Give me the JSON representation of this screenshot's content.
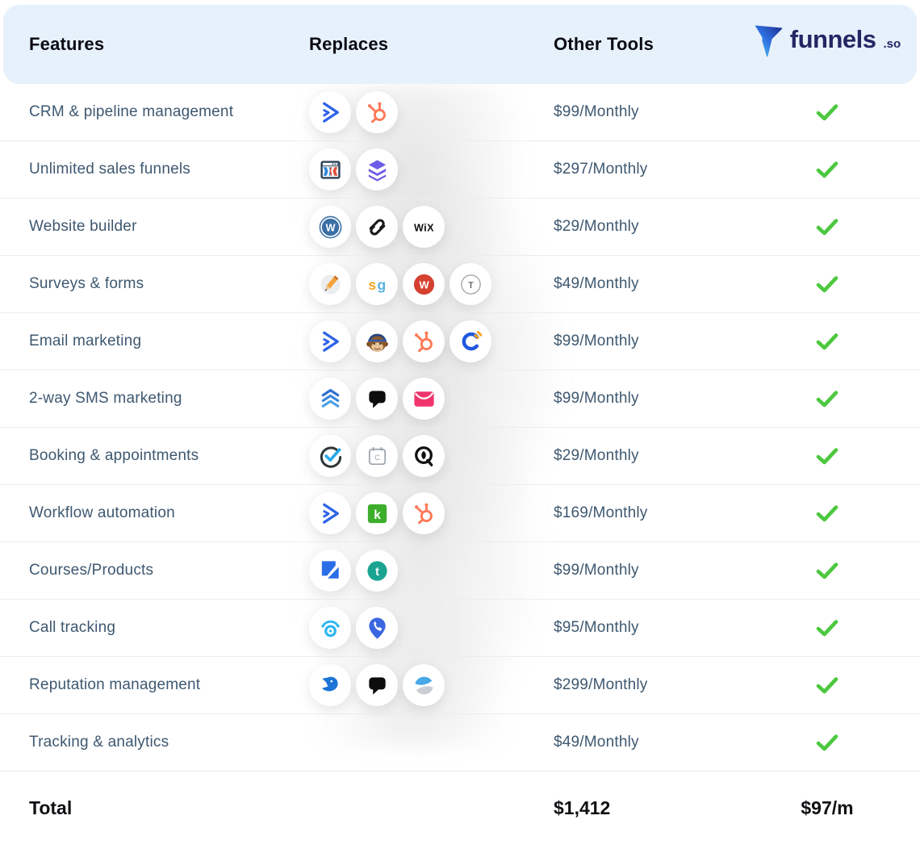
{
  "header": {
    "features_label": "Features",
    "replaces_label": "Replaces",
    "other_tools_label": "Other Tools",
    "brand": {
      "name": "funnels",
      "tld": ".so"
    }
  },
  "colors": {
    "header_bg": "#E7F1FC",
    "brand_navy": "#232663",
    "brand_gradient_start": "#1B2A8A",
    "brand_gradient_end": "#54D0F0",
    "feature_text": "#3E5870",
    "check_green": "#4CC83E",
    "divider": "#EDEDEE"
  },
  "rows": [
    {
      "feature": "CRM & pipeline management",
      "price": "$99/Monthly",
      "tools": [
        "activecampaign",
        "hubspot"
      ],
      "funnels_included": true
    },
    {
      "feature": "Unlimited sales funnels",
      "price": "$297/Monthly",
      "tools": [
        "clickfunnels",
        "leadpages-layers"
      ],
      "funnels_included": true
    },
    {
      "feature": "Website builder",
      "price": "$29/Monthly",
      "tools": [
        "wordpress",
        "squarespace",
        "wix"
      ],
      "funnels_included": true
    },
    {
      "feature": "Surveys & forms",
      "price": "$49/Monthly",
      "tools": [
        "pencil-survey",
        "surveygizmo",
        "wufoo",
        "typeform"
      ],
      "funnels_included": true
    },
    {
      "feature": "Email marketing",
      "price": "$99/Monthly",
      "tools": [
        "activecampaign",
        "mailchimp",
        "hubspot",
        "constant-contact"
      ],
      "funnels_included": true
    },
    {
      "feature": "2-way SMS marketing",
      "price": "$99/Monthly",
      "tools": [
        "sms-chevrons",
        "podium",
        "pink-envelope"
      ],
      "funnels_included": true
    },
    {
      "feature": "Booking & appointments",
      "price": "$29/Monthly",
      "tools": [
        "booking-check",
        "calendar",
        "acuity"
      ],
      "funnels_included": true
    },
    {
      "feature": "Workflow automation",
      "price": "$169/Monthly",
      "tools": [
        "activecampaign",
        "klaviyo",
        "hubspot"
      ],
      "funnels_included": true
    },
    {
      "feature": "Courses/Products",
      "price": "$99/Monthly",
      "tools": [
        "kajabi",
        "teachable"
      ],
      "funnels_included": true
    },
    {
      "feature": "Call tracking",
      "price": "$95/Monthly",
      "tools": [
        "callrail",
        "call-pin"
      ],
      "funnels_included": true
    },
    {
      "feature": "Reputation management",
      "price": "$299/Monthly",
      "tools": [
        "birdeye",
        "podium",
        "swell"
      ],
      "funnels_included": true
    },
    {
      "feature": "Tracking & analytics",
      "price": "$49/Monthly",
      "tools": [],
      "funnels_included": true
    }
  ],
  "total": {
    "label": "Total",
    "other_tools_total": "$1,412",
    "funnels_price": "$97/m"
  }
}
